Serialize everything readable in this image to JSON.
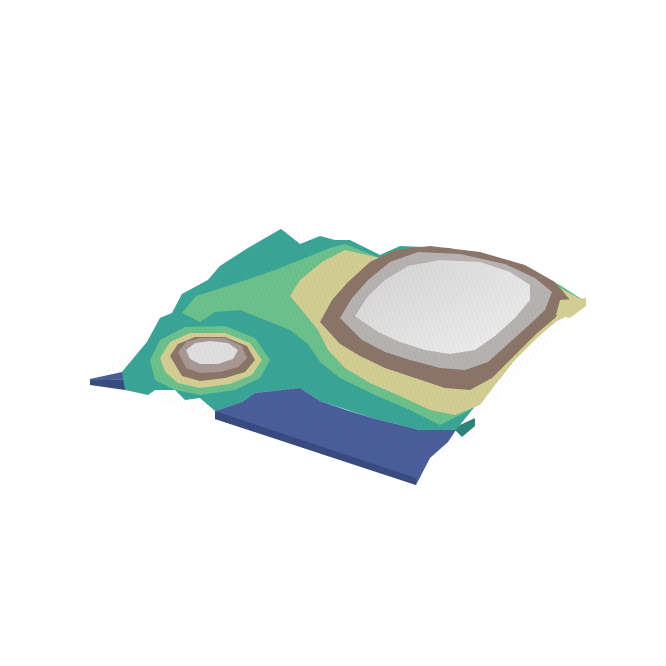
{
  "figure": {
    "description_type": "isometric-voxel-terrain",
    "background": "#ffffff",
    "palette": {
      "water": "#4a5e9a",
      "shallow": "#3f8fa0",
      "teal": "#3aa597",
      "green": "#6cc08c",
      "sand": "#d2cd92",
      "brown": "#8b7468",
      "light_brown": "#a79894",
      "rock": "#b5b2b1",
      "snow": "#dcdcdc"
    }
  }
}
